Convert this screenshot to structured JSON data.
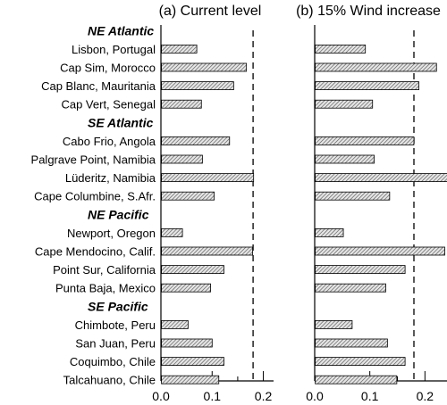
{
  "chart_data": {
    "type": "bar",
    "orientation": "horizontal",
    "panels": [
      {
        "title": "(a) Current level",
        "values": [
          0.069,
          0.166,
          0.141,
          0.078,
          0.133,
          0.08,
          0.18,
          0.103,
          0.041,
          0.178,
          0.122,
          0.096,
          0.052,
          0.099,
          0.122,
          0.112
        ],
        "xlim": [
          0.0,
          0.22
        ],
        "xticks": [
          "0.0",
          "0.1",
          "0.2"
        ],
        "reference_line": 0.18
      },
      {
        "title": "(b) 15% Wind increase",
        "values": [
          0.091,
          0.22,
          0.188,
          0.104,
          0.179,
          0.107,
          0.24,
          0.135,
          0.051,
          0.235,
          0.163,
          0.128,
          0.067,
          0.131,
          0.163,
          0.148
        ],
        "xlim": [
          0.0,
          0.24
        ],
        "xticks": [
          "0.0",
          "0.1",
          "0.2"
        ],
        "reference_line": 0.18
      }
    ],
    "groups": [
      {
        "label": "NE Atlantic",
        "categories": [
          "Lisbon, Portugal",
          "Cap Sim, Morocco",
          "Cap Blanc, Mauritania",
          "Cap Vert, Senegal"
        ]
      },
      {
        "label": "SE Atlantic",
        "categories": [
          "Cabo Frio, Angola",
          "Palgrave Point, Namibia",
          "Lüderitz, Namibia",
          "Cape Columbine, S.Afr."
        ]
      },
      {
        "label": "NE Pacific",
        "categories": [
          "Newport, Oregon",
          "Cape Mendocino, Calif.",
          "Point Sur, California",
          "Punta Baja, Mexico"
        ]
      },
      {
        "label": "SE Pacific",
        "categories": [
          "Chimbote, Peru",
          "San Juan, Peru",
          "Coquimbo, Chile",
          "Talcahuano, Chile"
        ]
      }
    ],
    "grid": false,
    "bar_pattern": "hatched",
    "colors": {
      "bar_stroke": "#000000",
      "bar_hatch": "#555555",
      "bar_fill": "#e6e6e6"
    }
  }
}
